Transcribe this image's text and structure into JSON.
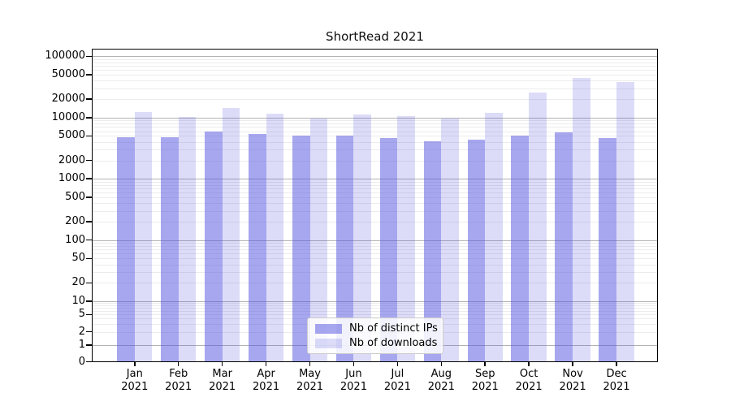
{
  "figure": {
    "background": "#ffffff"
  },
  "chart_data": {
    "type": "bar",
    "title": "ShortRead 2021",
    "categories": [
      {
        "month": "Jan",
        "year": "2021"
      },
      {
        "month": "Feb",
        "year": "2021"
      },
      {
        "month": "Mar",
        "year": "2021"
      },
      {
        "month": "Apr",
        "year": "2021"
      },
      {
        "month": "May",
        "year": "2021"
      },
      {
        "month": "Jun",
        "year": "2021"
      },
      {
        "month": "Jul",
        "year": "2021"
      },
      {
        "month": "Aug",
        "year": "2021"
      },
      {
        "month": "Sep",
        "year": "2021"
      },
      {
        "month": "Oct",
        "year": "2021"
      },
      {
        "month": "Nov",
        "year": "2021"
      },
      {
        "month": "Dec",
        "year": "2021"
      }
    ],
    "series": [
      {
        "name": "Nb of distinct IPs",
        "color": "rgba(80,80,224,0.5)",
        "values": [
          4800,
          4800,
          5900,
          5400,
          5100,
          5150,
          4600,
          4150,
          4350,
          5000,
          5800,
          4600
        ]
      },
      {
        "name": "Nb of downloads",
        "color": "rgba(80,80,224,0.2)",
        "values": [
          12300,
          10400,
          14200,
          11500,
          9500,
          11200,
          10700,
          9600,
          11900,
          26000,
          44500,
          38000
        ]
      }
    ],
    "yticks": [
      0,
      1,
      2,
      5,
      10,
      20,
      50,
      100,
      200,
      500,
      1000,
      2000,
      5000,
      10000,
      20000,
      50000,
      100000
    ],
    "yscale": "symlog",
    "ylim": [
      0,
      100000
    ],
    "grid": true,
    "gridline_major_color": "#b2b2b2",
    "gridline_minor_color": "#ececec",
    "legend_position": "lower center"
  }
}
